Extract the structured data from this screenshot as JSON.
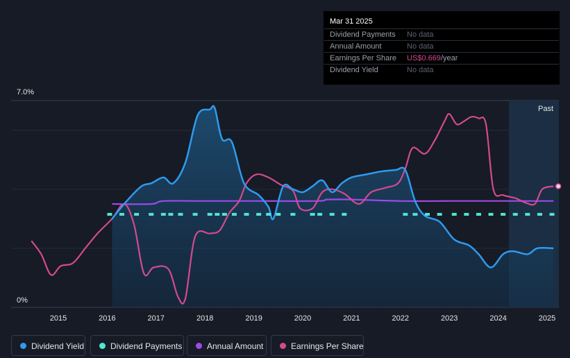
{
  "tooltip": {
    "date": "Mar 31 2025",
    "rows": [
      {
        "label": "Dividend Payments",
        "value": "No data"
      },
      {
        "label": "Annual Amount",
        "value": "No data"
      },
      {
        "label": "Earnings Per Share",
        "value": "US$0.669",
        "unit": "/year"
      },
      {
        "label": "Dividend Yield",
        "value": "No data"
      }
    ]
  },
  "legend": [
    {
      "label": "Dividend Yield",
      "color": "#2e9bef"
    },
    {
      "label": "Dividend Payments",
      "color": "#50e6d2"
    },
    {
      "label": "Annual Amount",
      "color": "#9b4be8"
    },
    {
      "label": "Earnings Per Share",
      "color": "#d44a8e"
    }
  ],
  "chart_data": {
    "type": "line",
    "y_axis": {
      "top_label": "7.0%",
      "bottom_label": "0%",
      "ylim": [
        0,
        7.0
      ]
    },
    "past_label": "Past",
    "x_ticks": [
      "2015",
      "2016",
      "2017",
      "2018",
      "2019",
      "2020",
      "2021",
      "2022",
      "2023",
      "2024",
      "2025"
    ],
    "xlim": [
      2014.0,
      2025.25
    ],
    "colors": {
      "yield": "#2e9bef",
      "payments": "#50e6d2",
      "annual": "#9b4be8",
      "eps": "#d44a8e"
    },
    "series": [
      {
        "name": "Dividend Yield",
        "key": "yield",
        "points": [
          [
            2016.1,
            3.0
          ],
          [
            2016.4,
            3.6
          ],
          [
            2016.7,
            4.1
          ],
          [
            2016.9,
            4.2
          ],
          [
            2017.15,
            4.4
          ],
          [
            2017.35,
            4.2
          ],
          [
            2017.6,
            4.9
          ],
          [
            2017.85,
            6.5
          ],
          [
            2018.1,
            6.7
          ],
          [
            2018.2,
            6.75
          ],
          [
            2018.35,
            5.7
          ],
          [
            2018.55,
            5.6
          ],
          [
            2018.8,
            4.2
          ],
          [
            2019.1,
            3.8
          ],
          [
            2019.3,
            3.4
          ],
          [
            2019.4,
            3.0
          ],
          [
            2019.6,
            4.1
          ],
          [
            2019.8,
            4.0
          ],
          [
            2020.0,
            3.9
          ],
          [
            2020.2,
            4.1
          ],
          [
            2020.4,
            4.3
          ],
          [
            2020.6,
            3.9
          ],
          [
            2020.8,
            4.2
          ],
          [
            2021.0,
            4.4
          ],
          [
            2021.3,
            4.5
          ],
          [
            2021.6,
            4.6
          ],
          [
            2021.9,
            4.65
          ],
          [
            2022.1,
            4.65
          ],
          [
            2022.3,
            3.6
          ],
          [
            2022.5,
            3.1
          ],
          [
            2022.8,
            2.9
          ],
          [
            2023.1,
            2.3
          ],
          [
            2023.4,
            2.1
          ],
          [
            2023.6,
            1.8
          ],
          [
            2023.85,
            1.35
          ],
          [
            2024.1,
            1.8
          ],
          [
            2024.3,
            1.9
          ],
          [
            2024.6,
            1.8
          ],
          [
            2024.8,
            2.0
          ],
          [
            2025.13,
            2.0
          ]
        ]
      },
      {
        "name": "Dividend Payments",
        "key": "payments",
        "points": [
          [
            2016.05,
            3.15
          ],
          [
            2016.3,
            3.15
          ],
          [
            2016.6,
            3.15
          ],
          [
            2016.9,
            3.15
          ],
          [
            2017.15,
            3.15
          ],
          [
            2017.3,
            3.15
          ],
          [
            2017.5,
            3.15
          ],
          [
            2017.8,
            3.15
          ],
          [
            2018.1,
            3.15
          ],
          [
            2018.25,
            3.15
          ],
          [
            2018.4,
            3.15
          ],
          [
            2018.6,
            3.15
          ],
          [
            2018.85,
            3.15
          ],
          [
            2019.1,
            3.15
          ],
          [
            2019.3,
            3.15
          ],
          [
            2019.5,
            3.15
          ],
          [
            2019.8,
            3.15
          ],
          [
            2020.2,
            3.15
          ],
          [
            2020.35,
            3.15
          ],
          [
            2020.6,
            3.15
          ],
          [
            2020.85,
            3.15
          ],
          [
            2022.1,
            3.15
          ],
          [
            2022.3,
            3.15
          ],
          [
            2022.55,
            3.15
          ],
          [
            2022.8,
            3.15
          ],
          [
            2023.1,
            3.15
          ],
          [
            2023.35,
            3.15
          ],
          [
            2023.6,
            3.15
          ],
          [
            2023.85,
            3.15
          ],
          [
            2024.1,
            3.15
          ],
          [
            2024.35,
            3.15
          ],
          [
            2024.6,
            3.15
          ],
          [
            2024.85,
            3.15
          ],
          [
            2025.1,
            3.15
          ]
        ]
      },
      {
        "name": "Annual Amount",
        "key": "annual",
        "points": [
          [
            2016.1,
            3.5
          ],
          [
            2016.9,
            3.5
          ],
          [
            2017.15,
            3.6
          ],
          [
            2018.0,
            3.6
          ],
          [
            2019.0,
            3.6
          ],
          [
            2020.3,
            3.6
          ],
          [
            2020.5,
            3.65
          ],
          [
            2021.0,
            3.65
          ],
          [
            2022.0,
            3.6
          ],
          [
            2023.0,
            3.6
          ],
          [
            2024.0,
            3.6
          ],
          [
            2025.13,
            3.6
          ]
        ]
      },
      {
        "name": "Earnings Per Share",
        "key": "eps",
        "points": [
          [
            2014.45,
            2.25
          ],
          [
            2014.65,
            1.8
          ],
          [
            2014.85,
            1.1
          ],
          [
            2015.05,
            1.4
          ],
          [
            2015.3,
            1.5
          ],
          [
            2015.55,
            2.0
          ],
          [
            2015.8,
            2.5
          ],
          [
            2016.1,
            3.0
          ],
          [
            2016.35,
            3.5
          ],
          [
            2016.55,
            2.8
          ],
          [
            2016.75,
            1.15
          ],
          [
            2016.95,
            1.35
          ],
          [
            2017.25,
            1.3
          ],
          [
            2017.45,
            0.35
          ],
          [
            2017.6,
            0.3
          ],
          [
            2017.8,
            2.4
          ],
          [
            2018.1,
            2.5
          ],
          [
            2018.3,
            2.6
          ],
          [
            2018.5,
            3.2
          ],
          [
            2018.7,
            3.6
          ],
          [
            2018.85,
            4.2
          ],
          [
            2019.05,
            4.5
          ],
          [
            2019.3,
            4.4
          ],
          [
            2019.55,
            4.15
          ],
          [
            2019.8,
            3.95
          ],
          [
            2019.95,
            3.35
          ],
          [
            2020.2,
            3.35
          ],
          [
            2020.4,
            3.9
          ],
          [
            2020.6,
            4.0
          ],
          [
            2020.85,
            3.85
          ],
          [
            2021.15,
            3.5
          ],
          [
            2021.4,
            3.9
          ],
          [
            2021.7,
            4.05
          ],
          [
            2021.95,
            4.2
          ],
          [
            2022.1,
            4.7
          ],
          [
            2022.25,
            5.4
          ],
          [
            2022.5,
            5.2
          ],
          [
            2022.7,
            5.65
          ],
          [
            2022.9,
            6.3
          ],
          [
            2023.0,
            6.55
          ],
          [
            2023.15,
            6.2
          ],
          [
            2023.3,
            6.3
          ],
          [
            2023.45,
            6.45
          ],
          [
            2023.6,
            6.4
          ],
          [
            2023.75,
            6.2
          ],
          [
            2023.9,
            4.0
          ],
          [
            2024.1,
            3.8
          ],
          [
            2024.35,
            3.7
          ],
          [
            2024.55,
            3.55
          ],
          [
            2024.75,
            3.5
          ],
          [
            2024.9,
            4.0
          ],
          [
            2025.13,
            4.1
          ]
        ]
      }
    ]
  }
}
